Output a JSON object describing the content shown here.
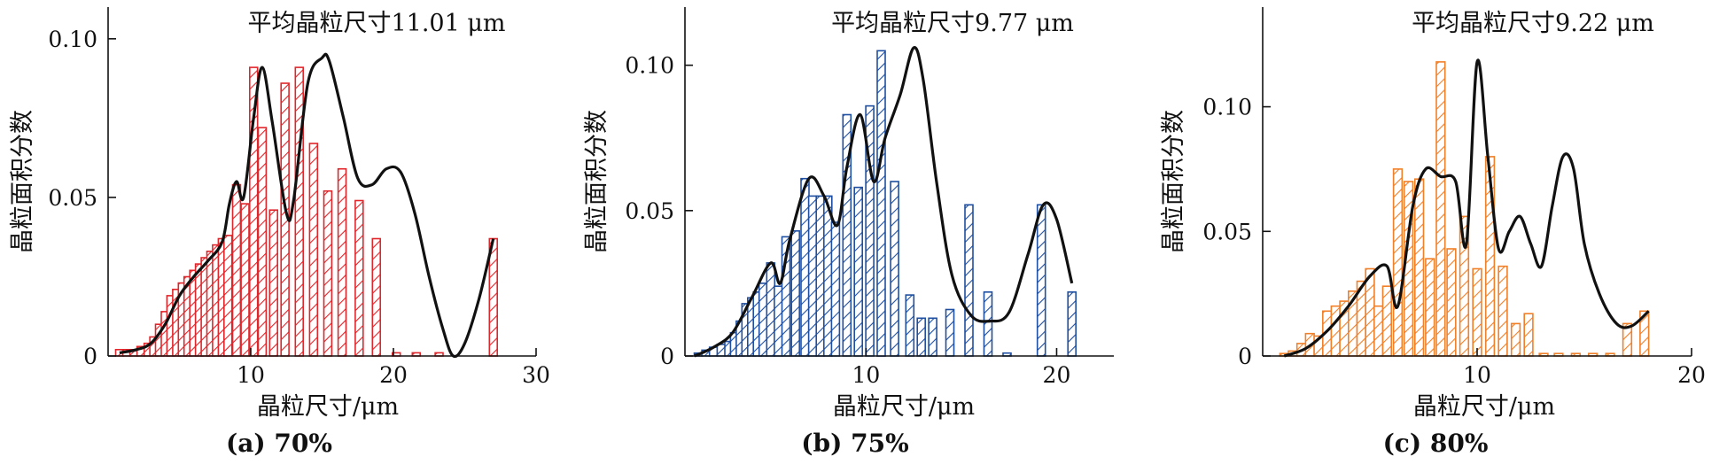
{
  "chart_data": [
    {
      "type": "bar",
      "title": "平均晶粒尺寸11.01 μm",
      "caption": "(a) 70%",
      "xlabel": "晶粒尺寸/μm",
      "ylabel": "晶粒面积分数",
      "color": "#e0262b",
      "xlim": [
        0,
        30
      ],
      "ylim": [
        0,
        0.11
      ],
      "xticks": [
        10,
        20,
        30
      ],
      "xticklabels": [
        "10",
        "20",
        "30"
      ],
      "yticks": [
        0,
        0.05,
        0.1
      ],
      "yticklabels": [
        "0",
        "0.05",
        "0.10"
      ],
      "bar_width": 0.55,
      "x": [
        0.8,
        1.3,
        1.8,
        2.3,
        2.8,
        3.2,
        3.6,
        4.0,
        4.4,
        4.8,
        5.2,
        5.6,
        6.0,
        6.4,
        6.8,
        7.2,
        7.6,
        8.0,
        8.4,
        9.0,
        9.6,
        10.2,
        10.8,
        11.6,
        12.4,
        13.4,
        14.4,
        15.4,
        16.4,
        17.6,
        18.8,
        20.2,
        21.6,
        23.2,
        27.0
      ],
      "values": [
        0.002,
        0.002,
        0.002,
        0.003,
        0.004,
        0.006,
        0.01,
        0.014,
        0.019,
        0.021,
        0.023,
        0.025,
        0.027,
        0.029,
        0.031,
        0.033,
        0.035,
        0.037,
        0.038,
        0.054,
        0.048,
        0.091,
        0.072,
        0.046,
        0.086,
        0.091,
        0.067,
        0.052,
        0.059,
        0.049,
        0.037,
        0.001,
        0.001,
        0.001,
        0.037
      ],
      "curve_x": [
        0.8,
        2,
        3,
        4,
        5,
        6,
        7,
        8,
        8.5,
        9,
        9.5,
        10.2,
        10.8,
        11.5,
        12.5,
        13,
        14,
        15,
        15.5,
        16.5,
        17.5,
        18.5,
        19.5,
        20.5,
        21.5,
        22.5,
        23.5,
        24.2,
        25,
        26,
        27
      ],
      "curve_y": [
        0.001,
        0.002,
        0.004,
        0.01,
        0.019,
        0.025,
        0.03,
        0.036,
        0.048,
        0.055,
        0.05,
        0.075,
        0.091,
        0.074,
        0.045,
        0.049,
        0.086,
        0.094,
        0.093,
        0.075,
        0.056,
        0.054,
        0.059,
        0.058,
        0.045,
        0.025,
        0.008,
        0.0,
        0.004,
        0.018,
        0.037
      ]
    },
    {
      "type": "bar",
      "title": "平均晶粒尺寸9.77 μm",
      "caption": "(b) 75%",
      "xlabel": "晶粒尺寸/μm",
      "ylabel": "晶粒面积分数",
      "color": "#1f4fa0",
      "xlim": [
        0.5,
        23
      ],
      "ylim": [
        0,
        0.12
      ],
      "xticks": [
        10,
        20
      ],
      "xticklabels": [
        "10",
        "20"
      ],
      "yticks": [
        0,
        0.05,
        0.1
      ],
      "yticklabels": [
        "0",
        "0.05",
        "0.10"
      ],
      "bar_width": 0.42,
      "x": [
        1.2,
        1.6,
        2.0,
        2.4,
        2.8,
        3.1,
        3.4,
        3.7,
        4.0,
        4.3,
        4.6,
        5.0,
        5.4,
        5.8,
        6.3,
        6.8,
        7.2,
        7.6,
        8.0,
        8.4,
        9.0,
        9.6,
        10.2,
        10.8,
        11.5,
        12.3,
        12.9,
        13.5,
        14.4,
        15.4,
        16.4,
        17.4,
        19.2,
        20.8
      ],
      "values": [
        0.001,
        0.002,
        0.003,
        0.004,
        0.005,
        0.008,
        0.012,
        0.018,
        0.02,
        0.022,
        0.025,
        0.032,
        0.024,
        0.041,
        0.043,
        0.061,
        0.055,
        0.055,
        0.055,
        0.046,
        0.083,
        0.058,
        0.086,
        0.105,
        0.06,
        0.021,
        0.013,
        0.013,
        0.016,
        0.052,
        0.022,
        0.001,
        0.052,
        0.022
      ],
      "curve_x": [
        1,
        2,
        3,
        4,
        5,
        5.5,
        6,
        7,
        7.8,
        8.5,
        9,
        9.7,
        10.4,
        11,
        11.8,
        12.5,
        13,
        13.7,
        14.5,
        15.5,
        16.5,
        17.5,
        18.5,
        19.3,
        20,
        20.8
      ],
      "curve_y": [
        0.0,
        0.003,
        0.008,
        0.02,
        0.032,
        0.025,
        0.04,
        0.061,
        0.055,
        0.045,
        0.065,
        0.083,
        0.06,
        0.075,
        0.09,
        0.106,
        0.095,
        0.06,
        0.028,
        0.014,
        0.012,
        0.015,
        0.035,
        0.052,
        0.047,
        0.025
      ]
    },
    {
      "type": "bar",
      "title": "平均晶粒尺寸9.22 μm",
      "caption": "(c) 80%",
      "xlabel": "晶粒尺寸/μm",
      "ylabel": "晶粒面积分数",
      "color": "#f0802a",
      "xlim": [
        0,
        20
      ],
      "ylim": [
        0,
        0.14
      ],
      "xticks": [
        10,
        20
      ],
      "xticklabels": [
        "10",
        "20"
      ],
      "yticks": [
        0,
        0.05,
        0.1
      ],
      "yticklabels": [
        "0",
        "0.05",
        "0.10"
      ],
      "bar_width": 0.4,
      "x": [
        1.0,
        1.4,
        1.8,
        2.2,
        2.6,
        3.0,
        3.4,
        3.8,
        4.2,
        4.6,
        5.0,
        5.4,
        5.8,
        6.3,
        6.8,
        7.3,
        7.8,
        8.3,
        8.8,
        9.4,
        10.0,
        10.6,
        11.2,
        11.8,
        12.4,
        13.1,
        13.8,
        14.6,
        15.4,
        16.2,
        17.0,
        17.8
      ],
      "values": [
        0.001,
        0.002,
        0.005,
        0.009,
        0.008,
        0.018,
        0.02,
        0.022,
        0.026,
        0.03,
        0.035,
        0.02,
        0.028,
        0.075,
        0.07,
        0.071,
        0.039,
        0.118,
        0.043,
        0.056,
        0.035,
        0.08,
        0.036,
        0.013,
        0.017,
        0.001,
        0.001,
        0.001,
        0.001,
        0.001,
        0.013,
        0.018
      ],
      "curve_x": [
        1,
        2,
        3,
        4,
        5,
        5.8,
        6.3,
        7,
        7.6,
        8.3,
        9,
        9.5,
        10,
        10.5,
        11,
        11.5,
        12,
        12.5,
        13,
        13.5,
        14,
        14.5,
        15,
        15.7,
        16.5,
        17.2,
        18
      ],
      "curve_y": [
        0.0,
        0.003,
        0.01,
        0.02,
        0.032,
        0.036,
        0.02,
        0.06,
        0.075,
        0.072,
        0.07,
        0.045,
        0.118,
        0.08,
        0.043,
        0.05,
        0.056,
        0.045,
        0.036,
        0.06,
        0.08,
        0.075,
        0.045,
        0.025,
        0.013,
        0.012,
        0.018
      ]
    }
  ]
}
